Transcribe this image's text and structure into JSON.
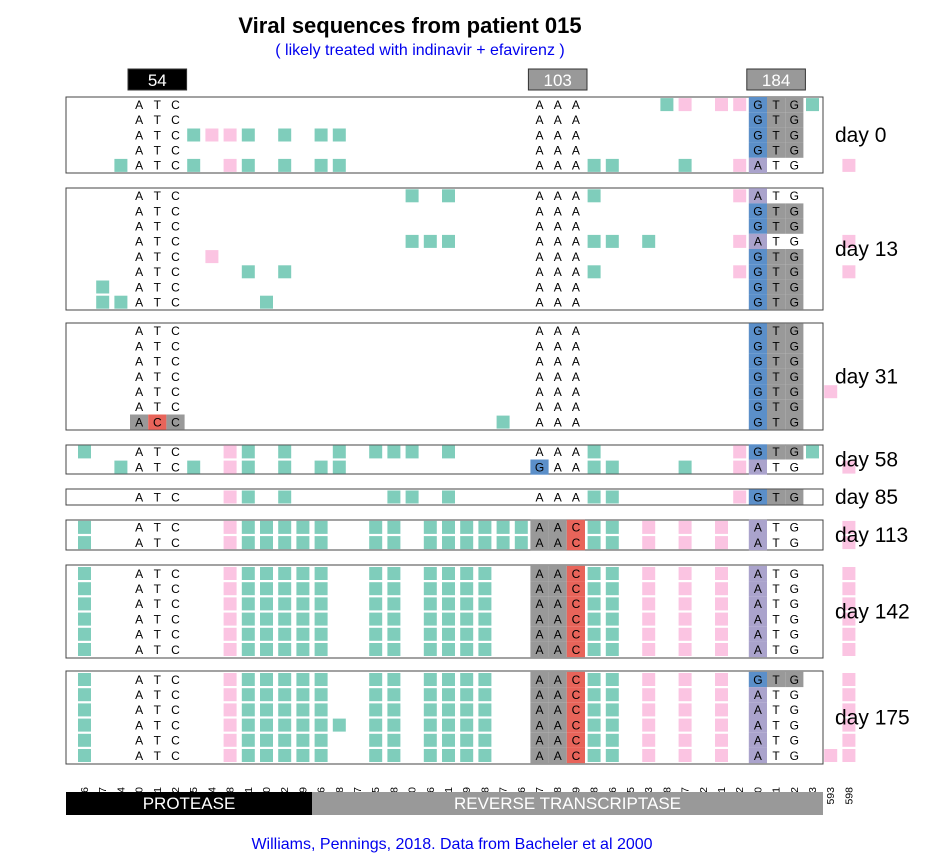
{
  "title": "Viral sequences from patient 015",
  "subtitle": "( likely treated with indinavir + efavirenz )",
  "credit": "Williams, Pennings, 2018. Data from Bacheler et al 2000",
  "colors": {
    "teal": "#7fcdbb",
    "pink": "#fbc4e2",
    "blue": "#5b8fc9",
    "purple": "#aaa3cc",
    "red": "#e8645a",
    "gray": "#999999",
    "black": "#000000"
  },
  "positions": [
    "6",
    "97",
    "114",
    "160",
    "161",
    "162",
    "165",
    "184",
    "188",
    "201",
    "210",
    "282",
    "289",
    "6",
    "18",
    "57",
    "165",
    "168",
    "180",
    "186",
    "201",
    "219",
    "228",
    "237",
    "246",
    "307",
    "308",
    "309",
    "318",
    "336",
    "375",
    "403",
    "468",
    "507",
    "522",
    "531",
    "532",
    "550",
    "551",
    "552",
    "573",
    "593",
    "598"
  ],
  "markers": [
    {
      "label": "54",
      "cols": [
        3,
        5
      ],
      "color": "#000000"
    },
    {
      "label": "103",
      "cols": [
        25,
        27
      ],
      "color": "#999999"
    },
    {
      "label": "184",
      "cols": [
        37,
        39
      ],
      "color": "#999999"
    }
  ],
  "genes": [
    {
      "label": "PROTEASE",
      "from": 0,
      "to": 12,
      "color": "#000000"
    },
    {
      "label": "REVERSE TRANSCRIPTASE",
      "from": 13,
      "to": 42,
      "color": "#999999"
    }
  ],
  "panels": [
    {
      "day": "day 0",
      "rows": [
        {
          "codons": [
            "ATC",
            "AAA",
            "GTG"
          ],
          "bg": {
            "28": "g"
          },
          "hl": {
            "37": "b",
            "38": "g",
            "39": "g"
          },
          "teal": [
            32,
            40
          ],
          "pink": [
            33,
            35,
            36
          ]
        },
        {
          "codons": [
            "ATC",
            "AAA",
            "GTG"
          ],
          "hl": {
            "37": "b",
            "38": "g",
            "39": "g"
          },
          "teal": [],
          "pink": []
        },
        {
          "codons": [
            "ATC",
            "AAA",
            "GTG"
          ],
          "hl": {
            "37": "b",
            "38": "g",
            "39": "g"
          },
          "teal": [
            6,
            9,
            11,
            13,
            14
          ],
          "pink": [
            7,
            8
          ]
        },
        {
          "codons": [
            "ATC",
            "AAA",
            "GTG"
          ],
          "hl": {
            "37": "b",
            "38": "g",
            "39": "g"
          },
          "teal": [],
          "pink": []
        },
        {
          "codons": [
            "ATC",
            "AAA",
            "ATG"
          ],
          "hl": {
            "37": "p"
          },
          "teal": [
            2,
            6,
            9,
            11,
            13,
            14,
            28,
            29,
            33
          ],
          "pink": [
            8,
            36,
            42
          ]
        }
      ]
    },
    {
      "day": "day 13",
      "rows": [
        {
          "codons": [
            "ATC",
            "AAA",
            "ATG"
          ],
          "hl": {
            "37": "p"
          },
          "teal": [
            18,
            20,
            28
          ],
          "pink": [
            36
          ]
        },
        {
          "codons": [
            "ATC",
            "AAA",
            "GTG"
          ],
          "hl": {
            "37": "b",
            "38": "g",
            "39": "g"
          },
          "teal": [],
          "pink": []
        },
        {
          "codons": [
            "ATC",
            "AAA",
            "GTG"
          ],
          "hl": {
            "37": "b",
            "38": "g",
            "39": "g"
          },
          "teal": [],
          "pink": []
        },
        {
          "codons": [
            "ATC",
            "AAA",
            "ATG"
          ],
          "hl": {
            "37": "p"
          },
          "teal": [
            18,
            19,
            20,
            28,
            29,
            31
          ],
          "pink": [
            36,
            42
          ]
        },
        {
          "codons": [
            "ATC",
            "AAA",
            "GTG"
          ],
          "hl": {
            "37": "b",
            "38": "g",
            "39": "g"
          },
          "teal": [],
          "pink": [
            7
          ]
        },
        {
          "codons": [
            "ATC",
            "AAA",
            "GTG"
          ],
          "hl": {
            "37": "b",
            "38": "g",
            "39": "g"
          },
          "teal": [
            9,
            11,
            28
          ],
          "pink": [
            36,
            42
          ]
        },
        {
          "codons": [
            "ATC",
            "AAA",
            "GTG"
          ],
          "hl": {
            "37": "b",
            "38": "g",
            "39": "g"
          },
          "teal": [
            1
          ],
          "pink": []
        },
        {
          "codons": [
            "ATC",
            "AAA",
            "GTG"
          ],
          "hl": {
            "37": "b",
            "38": "g",
            "39": "g"
          },
          "teal": [
            1,
            2,
            10
          ],
          "pink": []
        }
      ]
    },
    {
      "day": "day 31",
      "rows": [
        {
          "codons": [
            "ATC",
            "AAA",
            "GTG"
          ],
          "hl": {
            "37": "b",
            "38": "g",
            "39": "g"
          },
          "teal": [],
          "pink": []
        },
        {
          "codons": [
            "ATC",
            "AAA",
            "GTG"
          ],
          "hl": {
            "37": "b",
            "38": "g",
            "39": "g"
          },
          "teal": [],
          "pink": []
        },
        {
          "codons": [
            "ATC",
            "AAA",
            "GTG"
          ],
          "hl": {
            "37": "b",
            "38": "g",
            "39": "g"
          },
          "teal": [],
          "pink": []
        },
        {
          "codons": [
            "ATC",
            "AAA",
            "GTG"
          ],
          "hl": {
            "37": "b",
            "38": "g",
            "39": "g"
          },
          "teal": [],
          "pink": []
        },
        {
          "codons": [
            "ATC",
            "AAA",
            "GTG"
          ],
          "hl": {
            "37": "b",
            "38": "g",
            "39": "g"
          },
          "teal": [],
          "pink": [
            41
          ]
        },
        {
          "codons": [
            "ATC",
            "AAA",
            "GTG"
          ],
          "hl": {
            "37": "b",
            "38": "g",
            "39": "g"
          },
          "teal": [],
          "pink": []
        },
        {
          "codons": [
            "ACC",
            "AAA",
            "GTG"
          ],
          "hl": {
            "3": "g",
            "4": "r",
            "5": "g",
            "37": "b",
            "38": "g",
            "39": "g"
          },
          "teal": [
            23
          ],
          "pink": []
        }
      ]
    },
    {
      "day": "day 58",
      "rows": [
        {
          "codons": [
            "ATC",
            "AAA",
            "GTG"
          ],
          "hl": {
            "37": "b",
            "38": "g",
            "39": "g"
          },
          "teal": [
            0,
            9,
            11,
            14,
            16,
            17,
            18,
            20,
            28,
            40
          ],
          "pink": [
            8,
            36
          ]
        },
        {
          "codons": [
            "ATC",
            "GAA",
            "ATG"
          ],
          "hl": {
            "25": "b",
            "37": "p"
          },
          "teal": [
            2,
            6,
            9,
            11,
            13,
            14,
            28,
            29,
            33
          ],
          "pink": [
            8,
            36,
            42
          ]
        }
      ]
    },
    {
      "day": "day 85",
      "rows": [
        {
          "codons": [
            "ATC",
            "AAA",
            "GTG"
          ],
          "hl": {
            "37": "b",
            "38": "g",
            "39": "g"
          },
          "teal": [
            9,
            11,
            17,
            18,
            20,
            28,
            29
          ],
          "pink": [
            8,
            36
          ]
        }
      ]
    },
    {
      "day": "day 113",
      "rows": [
        {
          "codons": [
            "ATC",
            "AAC",
            "ATG"
          ],
          "hl": {
            "25": "g",
            "26": "g",
            "27": "r",
            "37": "p"
          },
          "teal": [
            0,
            9,
            10,
            11,
            12,
            13,
            16,
            17,
            19,
            20,
            21,
            22,
            23,
            24,
            28,
            29
          ],
          "pink": [
            8,
            31,
            33,
            35,
            42
          ]
        },
        {
          "codons": [
            "ATC",
            "AAC",
            "ATG"
          ],
          "hl": {
            "25": "g",
            "26": "g",
            "27": "r",
            "37": "p"
          },
          "teal": [
            0,
            9,
            10,
            11,
            12,
            13,
            16,
            17,
            19,
            20,
            21,
            22,
            23,
            24,
            28,
            29
          ],
          "pink": [
            8,
            31,
            33,
            35,
            42
          ]
        }
      ]
    },
    {
      "day": "day 142",
      "rows": [
        {
          "codons": [
            "ATC",
            "AAC",
            "ATG"
          ],
          "hl": {
            "25": "g",
            "26": "g",
            "27": "r",
            "37": "p"
          },
          "teal": [
            0,
            9,
            10,
            11,
            12,
            13,
            16,
            17,
            19,
            20,
            21,
            22,
            28,
            29
          ],
          "pink": [
            8,
            31,
            33,
            35,
            42
          ]
        },
        {
          "codons": [
            "ATC",
            "AAC",
            "ATG"
          ],
          "hl": {
            "25": "g",
            "26": "g",
            "27": "r",
            "37": "p"
          },
          "teal": [
            0,
            9,
            10,
            11,
            12,
            13,
            16,
            17,
            19,
            20,
            21,
            22,
            28,
            29
          ],
          "pink": [
            8,
            31,
            33,
            35,
            42
          ]
        },
        {
          "codons": [
            "ATC",
            "AAC",
            "ATG"
          ],
          "hl": {
            "25": "g",
            "26": "g",
            "27": "r",
            "37": "p"
          },
          "teal": [
            0,
            9,
            10,
            11,
            12,
            13,
            16,
            17,
            19,
            20,
            21,
            22,
            28,
            29
          ],
          "pink": [
            8,
            31,
            33,
            35,
            42
          ]
        },
        {
          "codons": [
            "ATC",
            "AAC",
            "ATG"
          ],
          "hl": {
            "25": "g",
            "26": "g",
            "27": "r",
            "37": "p"
          },
          "teal": [
            0,
            9,
            10,
            11,
            12,
            13,
            16,
            17,
            19,
            20,
            21,
            22,
            28,
            29
          ],
          "pink": [
            8,
            31,
            33,
            35,
            42
          ]
        },
        {
          "codons": [
            "ATC",
            "AAC",
            "ATG"
          ],
          "hl": {
            "25": "g",
            "26": "g",
            "27": "r",
            "37": "p"
          },
          "teal": [
            0,
            9,
            10,
            11,
            12,
            13,
            16,
            17,
            19,
            20,
            21,
            22,
            28,
            29
          ],
          "pink": [
            8,
            31,
            33,
            35,
            42
          ]
        },
        {
          "codons": [
            "ATC",
            "AAC",
            "ATG"
          ],
          "hl": {
            "25": "g",
            "26": "g",
            "27": "r",
            "37": "p"
          },
          "teal": [
            0,
            9,
            10,
            11,
            12,
            13,
            16,
            17,
            19,
            20,
            21,
            22,
            28,
            29
          ],
          "pink": [
            8,
            31,
            33,
            35,
            42
          ]
        }
      ]
    },
    {
      "day": "day 175",
      "rows": [
        {
          "codons": [
            "ATC",
            "AAC",
            "GTG"
          ],
          "hl": {
            "25": "g",
            "26": "g",
            "27": "r",
            "37": "b",
            "38": "g",
            "39": "g"
          },
          "teal": [
            0,
            9,
            10,
            11,
            12,
            13,
            16,
            17,
            19,
            20,
            21,
            22,
            28,
            29
          ],
          "pink": [
            8,
            31,
            33,
            35,
            42
          ]
        },
        {
          "codons": [
            "ATC",
            "AAC",
            "ATG"
          ],
          "hl": {
            "25": "g",
            "26": "g",
            "27": "r",
            "37": "p"
          },
          "teal": [
            0,
            9,
            10,
            11,
            12,
            13,
            16,
            17,
            19,
            20,
            21,
            22,
            28,
            29
          ],
          "pink": [
            8,
            31,
            33,
            35,
            42
          ]
        },
        {
          "codons": [
            "ATC",
            "AAC",
            "ATG"
          ],
          "hl": {
            "25": "g",
            "26": "g",
            "27": "r",
            "37": "p"
          },
          "teal": [
            0,
            9,
            10,
            11,
            12,
            13,
            16,
            17,
            19,
            20,
            21,
            22,
            28,
            29
          ],
          "pink": [
            8,
            31,
            33,
            35,
            42
          ]
        },
        {
          "codons": [
            "ATC",
            "AAC",
            "ATG"
          ],
          "hl": {
            "25": "g",
            "26": "g",
            "27": "r",
            "37": "p"
          },
          "teal": [
            0,
            9,
            10,
            11,
            12,
            13,
            14,
            16,
            17,
            19,
            20,
            21,
            22,
            28,
            29
          ],
          "pink": [
            8,
            31,
            33,
            35,
            42
          ]
        },
        {
          "codons": [
            "ATC",
            "AAC",
            "ATG"
          ],
          "hl": {
            "25": "g",
            "26": "g",
            "27": "r",
            "37": "p"
          },
          "teal": [
            0,
            9,
            10,
            11,
            12,
            13,
            16,
            17,
            19,
            20,
            21,
            22,
            28,
            29
          ],
          "pink": [
            8,
            31,
            33,
            35,
            42
          ]
        },
        {
          "codons": [
            "ATC",
            "AAC",
            "ATG"
          ],
          "hl": {
            "25": "g",
            "26": "g",
            "27": "r",
            "37": "p"
          },
          "teal": [
            0,
            9,
            10,
            11,
            12,
            13,
            16,
            17,
            19,
            20,
            21,
            22,
            28,
            29
          ],
          "pink": [
            8,
            31,
            33,
            35,
            41,
            42
          ]
        }
      ]
    }
  ]
}
